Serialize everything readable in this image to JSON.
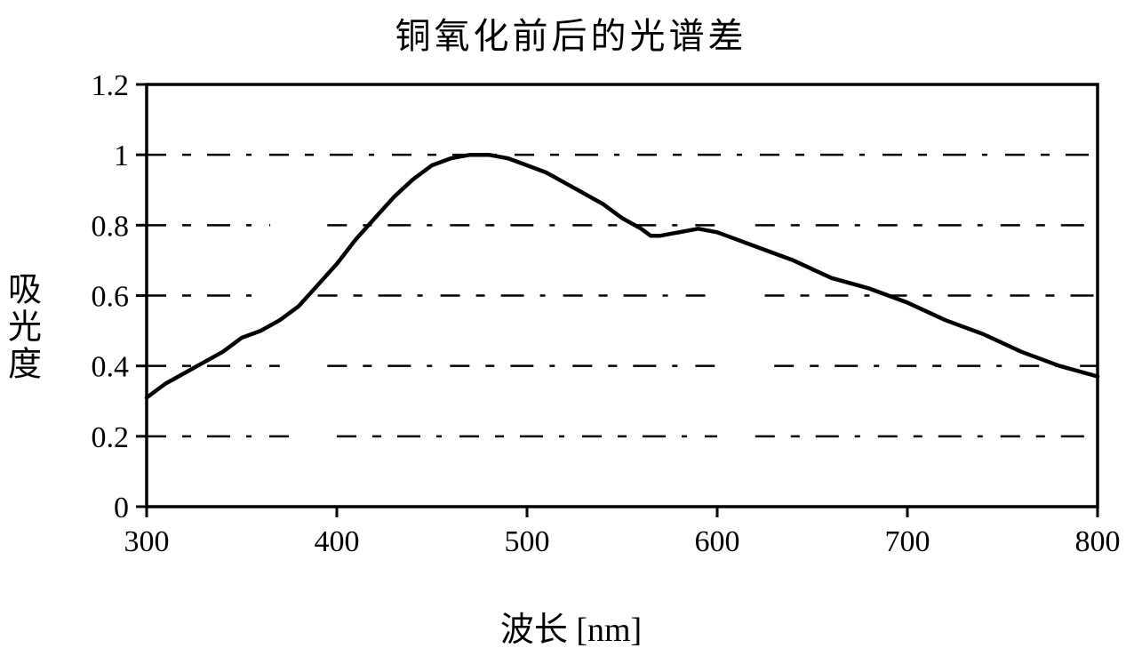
{
  "chart": {
    "type": "line",
    "title": "铜氧化前后的光谱差",
    "xlabel": "波长 [nm]",
    "ylabel": "吸光度",
    "title_fontsize": 40,
    "label_fontsize": 38,
    "tick_fontsize": 34,
    "font_family_labels": "SimSun, Songti SC, serif",
    "font_family_numbers": "Times New Roman, serif",
    "background_color": "#ffffff",
    "axis_color": "#000000",
    "grid_color": "#000000",
    "line_color": "#000000",
    "line_width": 4.5,
    "axis_width": 3.5,
    "xlim": [
      300,
      800
    ],
    "ylim": [
      0,
      1.2
    ],
    "xticks": [
      300,
      400,
      500,
      600,
      700,
      800
    ],
    "yticks": [
      0,
      0.2,
      0.4,
      0.6,
      0.8,
      1,
      1.2
    ],
    "ytick_labels": [
      "0",
      "0.2",
      "0.4",
      "0.6",
      "0.8",
      "1",
      "1.2"
    ],
    "grid_dash": "22 18 10 18 26 18 6 20",
    "gridline_segments": {
      "0.2": [
        [
          300,
          380
        ],
        [
          400,
          600
        ],
        [
          620,
          800
        ]
      ],
      "0.4": [
        [
          300,
          370
        ],
        [
          395,
          605
        ],
        [
          630,
          800
        ]
      ],
      "0.6": [
        [
          300,
          360
        ],
        [
          390,
          600
        ],
        [
          625,
          800
        ]
      ],
      "0.8": [
        [
          300,
          365
        ],
        [
          395,
          600
        ],
        [
          620,
          800
        ]
      ],
      "1": [
        [
          300,
          800
        ]
      ],
      "1.2": [
        [
          300,
          370
        ],
        [
          395,
          605
        ],
        [
          625,
          800
        ]
      ]
    },
    "series": [
      {
        "name": "diff",
        "x": [
          300,
          310,
          320,
          330,
          340,
          350,
          360,
          370,
          380,
          390,
          400,
          410,
          420,
          430,
          440,
          450,
          460,
          470,
          480,
          490,
          500,
          510,
          520,
          530,
          540,
          550,
          560,
          565,
          570,
          580,
          590,
          600,
          620,
          640,
          660,
          680,
          700,
          720,
          740,
          760,
          780,
          800
        ],
        "y": [
          0.31,
          0.35,
          0.38,
          0.41,
          0.44,
          0.48,
          0.5,
          0.53,
          0.57,
          0.63,
          0.69,
          0.76,
          0.82,
          0.88,
          0.93,
          0.97,
          0.99,
          1.0,
          1.0,
          0.99,
          0.97,
          0.95,
          0.92,
          0.89,
          0.86,
          0.82,
          0.79,
          0.77,
          0.77,
          0.78,
          0.79,
          0.78,
          0.74,
          0.7,
          0.65,
          0.62,
          0.58,
          0.53,
          0.49,
          0.44,
          0.4,
          0.37
        ]
      }
    ]
  }
}
